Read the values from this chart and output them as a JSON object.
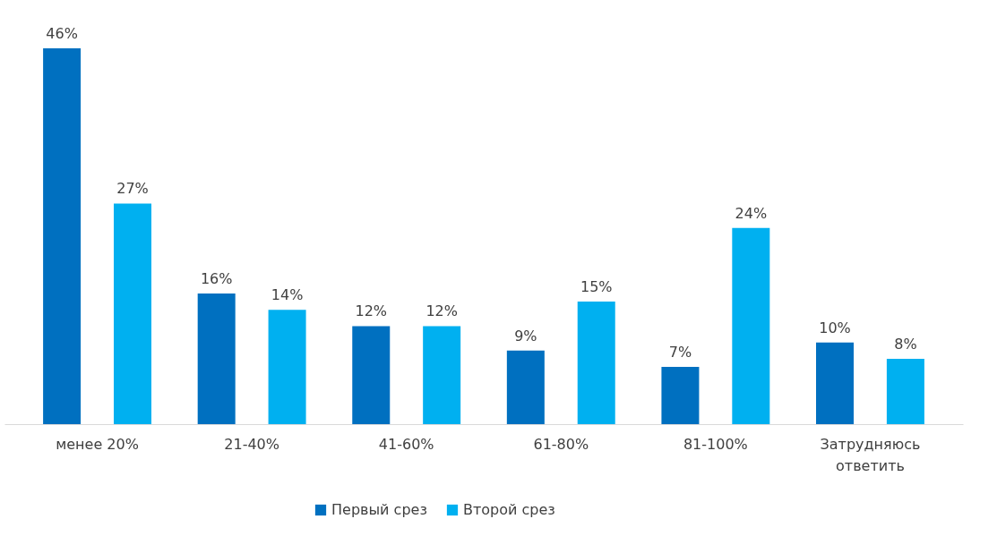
{
  "chart_data": {
    "type": "bar",
    "categories": [
      "менее 20%",
      "21-40%",
      "41-60%",
      "61-80%",
      "81-100%",
      "Затрудняюсь ответить"
    ],
    "series": [
      {
        "name": "Первый срез",
        "color": "#0070c0",
        "values": [
          46,
          16,
          12,
          9,
          7,
          10
        ],
        "value_labels": [
          "46%",
          "16%",
          "12%",
          "9%",
          "7%",
          "10%"
        ]
      },
      {
        "name": "Второй срез",
        "color": "#00b0f0",
        "values": [
          27,
          14,
          12,
          15,
          24,
          8
        ],
        "value_labels": [
          "27%",
          "14%",
          "12%",
          "15%",
          "24%",
          "8%"
        ]
      }
    ],
    "grid": false,
    "legend": "bottom"
  }
}
